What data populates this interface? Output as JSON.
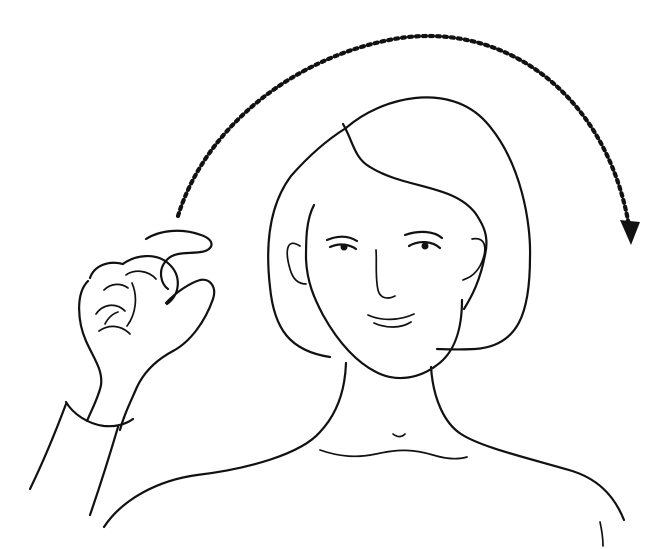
{
  "illustration": {
    "subject": "sign-language-gesture",
    "line_color": "#111111",
    "background_color": "#ffffff"
  }
}
